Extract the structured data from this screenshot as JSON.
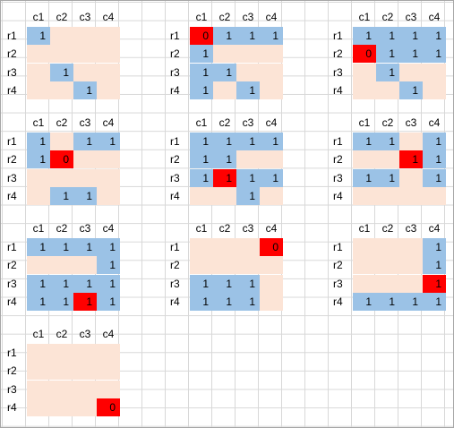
{
  "columns": [
    "c1",
    "c2",
    "c3",
    "c4"
  ],
  "rows": [
    "r1",
    "r2",
    "r3",
    "r4"
  ],
  "colors": {
    "pink": "#fce4d6",
    "blue": "#9bc2e6",
    "red": "#ff0000"
  },
  "panels": [
    {
      "cells": [
        [
          [
            "b",
            "1"
          ],
          [
            "p",
            ""
          ],
          [
            "p",
            ""
          ],
          [
            "p",
            ""
          ]
        ],
        [
          [
            "p",
            ""
          ],
          [
            "p",
            ""
          ],
          [
            "p",
            ""
          ],
          [
            "p",
            ""
          ]
        ],
        [
          [
            "p",
            ""
          ],
          [
            "b",
            "1"
          ],
          [
            "p",
            ""
          ],
          [
            "p",
            ""
          ]
        ],
        [
          [
            "p",
            ""
          ],
          [
            "p",
            ""
          ],
          [
            "b",
            "1"
          ],
          [
            "p",
            ""
          ]
        ]
      ]
    },
    {
      "cells": [
        [
          [
            "r",
            "0"
          ],
          [
            "b",
            "1"
          ],
          [
            "b",
            "1"
          ],
          [
            "b",
            "1"
          ]
        ],
        [
          [
            "b",
            "1"
          ],
          [
            "p",
            ""
          ],
          [
            "p",
            ""
          ],
          [
            "p",
            ""
          ]
        ],
        [
          [
            "b",
            "1"
          ],
          [
            "b",
            "1"
          ],
          [
            "p",
            ""
          ],
          [
            "p",
            ""
          ]
        ],
        [
          [
            "b",
            "1"
          ],
          [
            "p",
            ""
          ],
          [
            "b",
            "1"
          ],
          [
            "p",
            ""
          ]
        ]
      ]
    },
    {
      "cells": [
        [
          [
            "b",
            "1"
          ],
          [
            "b",
            "1"
          ],
          [
            "b",
            "1"
          ],
          [
            "b",
            "1"
          ]
        ],
        [
          [
            "r",
            "0"
          ],
          [
            "b",
            "1"
          ],
          [
            "b",
            "1"
          ],
          [
            "b",
            "1"
          ]
        ],
        [
          [
            "p",
            ""
          ],
          [
            "b",
            "1"
          ],
          [
            "p",
            ""
          ],
          [
            "p",
            ""
          ]
        ],
        [
          [
            "p",
            ""
          ],
          [
            "p",
            ""
          ],
          [
            "b",
            "1"
          ],
          [
            "p",
            ""
          ]
        ]
      ]
    },
    {
      "cells": [
        [
          [
            "b",
            "1"
          ],
          [
            "p",
            ""
          ],
          [
            "b",
            "1"
          ],
          [
            "b",
            "1"
          ]
        ],
        [
          [
            "b",
            "1"
          ],
          [
            "r",
            "0"
          ],
          [
            "p",
            ""
          ],
          [
            "p",
            ""
          ]
        ],
        [
          [
            "p",
            ""
          ],
          [
            "p",
            ""
          ],
          [
            "p",
            ""
          ],
          [
            "p",
            ""
          ]
        ],
        [
          [
            "p",
            ""
          ],
          [
            "b",
            "1"
          ],
          [
            "b",
            "1"
          ],
          [
            "p",
            ""
          ]
        ]
      ]
    },
    {
      "cells": [
        [
          [
            "b",
            "1"
          ],
          [
            "b",
            "1"
          ],
          [
            "b",
            "1"
          ],
          [
            "b",
            "1"
          ]
        ],
        [
          [
            "b",
            "1"
          ],
          [
            "b",
            "1"
          ],
          [
            "p",
            ""
          ],
          [
            "p",
            ""
          ]
        ],
        [
          [
            "b",
            "1"
          ],
          [
            "r",
            "1"
          ],
          [
            "b",
            "1"
          ],
          [
            "b",
            "1"
          ]
        ],
        [
          [
            "p",
            ""
          ],
          [
            "p",
            ""
          ],
          [
            "b",
            "1"
          ],
          [
            "p",
            ""
          ]
        ]
      ]
    },
    {
      "cells": [
        [
          [
            "b",
            "1"
          ],
          [
            "b",
            "1"
          ],
          [
            "p",
            ""
          ],
          [
            "b",
            "1"
          ]
        ],
        [
          [
            "p",
            ""
          ],
          [
            "p",
            ""
          ],
          [
            "r",
            "1"
          ],
          [
            "b",
            "1"
          ]
        ],
        [
          [
            "b",
            "1"
          ],
          [
            "b",
            "1"
          ],
          [
            "p",
            ""
          ],
          [
            "b",
            "1"
          ]
        ],
        [
          [
            "p",
            ""
          ],
          [
            "p",
            ""
          ],
          [
            "p",
            ""
          ],
          [
            "p",
            ""
          ]
        ]
      ]
    },
    {
      "cells": [
        [
          [
            "b",
            "1"
          ],
          [
            "b",
            "1"
          ],
          [
            "b",
            "1"
          ],
          [
            "b",
            "1"
          ]
        ],
        [
          [
            "p",
            ""
          ],
          [
            "p",
            ""
          ],
          [
            "p",
            ""
          ],
          [
            "b",
            "1"
          ]
        ],
        [
          [
            "b",
            "1"
          ],
          [
            "b",
            "1"
          ],
          [
            "b",
            "1"
          ],
          [
            "b",
            "1"
          ]
        ],
        [
          [
            "b",
            "1"
          ],
          [
            "b",
            "1"
          ],
          [
            "r",
            "1"
          ],
          [
            "b",
            "1"
          ]
        ]
      ]
    },
    {
      "cells": [
        [
          [
            "p",
            ""
          ],
          [
            "p",
            ""
          ],
          [
            "p",
            ""
          ],
          [
            "r",
            "0"
          ]
        ],
        [
          [
            "p",
            ""
          ],
          [
            "p",
            ""
          ],
          [
            "p",
            ""
          ],
          [
            "p",
            ""
          ]
        ],
        [
          [
            "b",
            "1"
          ],
          [
            "b",
            "1"
          ],
          [
            "b",
            "1"
          ],
          [
            "p",
            ""
          ]
        ],
        [
          [
            "b",
            "1"
          ],
          [
            "b",
            "1"
          ],
          [
            "b",
            "1"
          ],
          [
            "p",
            ""
          ]
        ]
      ]
    },
    {
      "cells": [
        [
          [
            "p",
            ""
          ],
          [
            "p",
            ""
          ],
          [
            "p",
            ""
          ],
          [
            "b",
            "1"
          ]
        ],
        [
          [
            "p",
            ""
          ],
          [
            "p",
            ""
          ],
          [
            "p",
            ""
          ],
          [
            "b",
            "1"
          ]
        ],
        [
          [
            "p",
            ""
          ],
          [
            "p",
            ""
          ],
          [
            "p",
            ""
          ],
          [
            "r",
            "1"
          ]
        ],
        [
          [
            "b",
            "1"
          ],
          [
            "b",
            "1"
          ],
          [
            "b",
            "1"
          ],
          [
            "b",
            "1"
          ]
        ]
      ]
    },
    {
      "cells": [
        [
          [
            "p",
            ""
          ],
          [
            "p",
            ""
          ],
          [
            "p",
            ""
          ],
          [
            "p",
            ""
          ]
        ],
        [
          [
            "p",
            ""
          ],
          [
            "p",
            ""
          ],
          [
            "p",
            ""
          ],
          [
            "p",
            ""
          ]
        ],
        [
          [
            "p",
            ""
          ],
          [
            "p",
            ""
          ],
          [
            "p",
            ""
          ],
          [
            "p",
            ""
          ]
        ],
        [
          [
            "p",
            ""
          ],
          [
            "p",
            ""
          ],
          [
            "p",
            ""
          ],
          [
            "r",
            "0"
          ]
        ]
      ]
    }
  ]
}
